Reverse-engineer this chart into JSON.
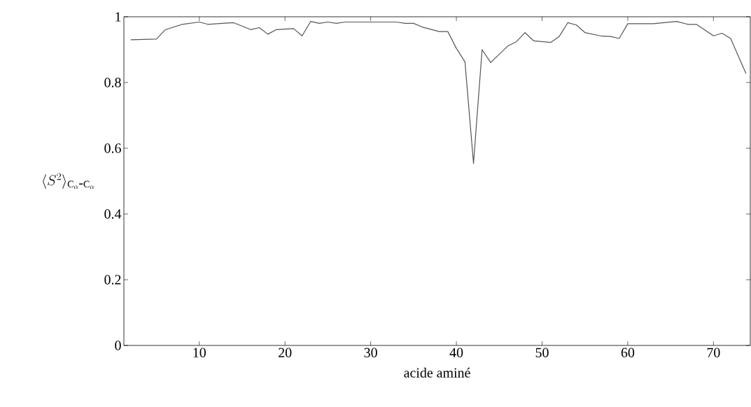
{
  "chart_data": {
    "type": "line",
    "xlabel": "acide aminé",
    "ylabel": "\\langle S^2\\rangle_{\\mathrm{C}_\\alpha\\mbox{-}\\mathrm{C}_\\alpha}",
    "x": [
      2,
      5,
      6,
      8,
      10,
      11,
      12.7,
      14,
      16,
      17,
      18,
      19,
      21,
      22,
      23,
      24,
      25,
      26,
      27,
      33,
      34,
      35,
      36,
      38,
      39,
      40,
      41,
      42,
      43,
      44,
      46,
      47,
      48,
      49,
      51,
      52,
      53,
      54,
      55,
      57,
      58,
      59,
      60,
      63,
      65.7,
      67,
      68,
      70,
      71,
      72,
      73.8
    ],
    "series": [
      {
        "color": "#555555",
        "values": [
          0.93,
          0.932,
          0.96,
          0.977,
          0.984,
          0.977,
          0.98,
          0.982,
          0.961,
          0.967,
          0.947,
          0.961,
          0.964,
          0.942,
          0.986,
          0.98,
          0.984,
          0.98,
          0.984,
          0.984,
          0.98,
          0.98,
          0.969,
          0.955,
          0.955,
          0.904,
          0.863,
          0.554,
          0.9,
          0.861,
          0.911,
          0.924,
          0.952,
          0.927,
          0.922,
          0.94,
          0.982,
          0.975,
          0.952,
          0.941,
          0.94,
          0.934,
          0.979,
          0.979,
          0.986,
          0.977,
          0.977,
          0.942,
          0.95,
          0.934,
          0.827
        ]
      }
    ],
    "xlim": [
      1.2,
      74.3
    ],
    "ylim": [
      0,
      1
    ],
    "xticks": [
      10,
      20,
      30,
      40,
      50,
      60,
      70
    ],
    "yticks": [
      0,
      0.2,
      0.4,
      0.6,
      0.8,
      1
    ],
    "grid": false,
    "marker": "none",
    "line_style": "solid"
  }
}
